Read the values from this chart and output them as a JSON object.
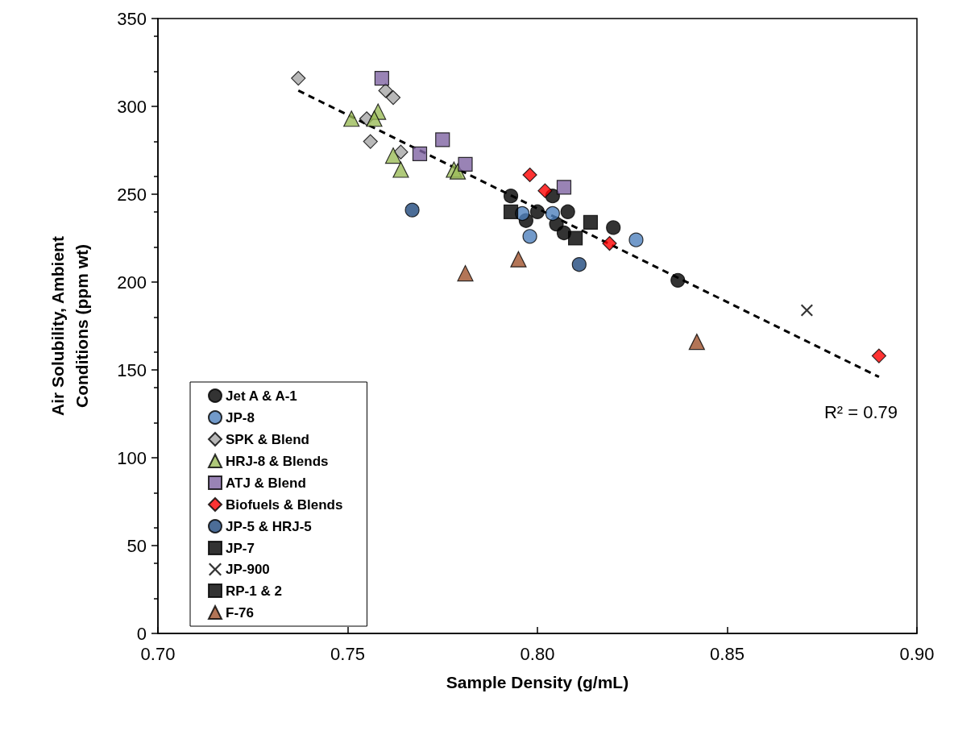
{
  "chart_data": {
    "type": "scatter",
    "xlabel": "Sample Density (g/mL)",
    "ylabel": "Air Solubility, Ambient Conditions (ppm wt)",
    "xlim": [
      0.7,
      0.9
    ],
    "xticks": [
      {
        "value": 0.7,
        "label": "0.70"
      },
      {
        "value": 0.75,
        "label": "0.75"
      },
      {
        "value": 0.8,
        "label": "0.80"
      },
      {
        "value": 0.85,
        "label": "0.85"
      },
      {
        "value": 0.9,
        "label": "0.90"
      }
    ],
    "ylim": [
      0,
      350
    ],
    "yticks": [
      0,
      50,
      100,
      150,
      200,
      250,
      300,
      350
    ],
    "grid": false,
    "legend": "bottom left",
    "annotations": [
      "R² = 0.79"
    ],
    "series": [
      {
        "name": "Jet A & A-1",
        "color": "#000000",
        "marker": "circle",
        "x": [
          0.793,
          0.797,
          0.8,
          0.804,
          0.805,
          0.808,
          0.807,
          0.82,
          0.837
        ],
        "values": [
          249,
          235,
          240,
          249,
          233,
          240,
          228,
          231,
          201
        ]
      },
      {
        "name": "JP-8",
        "color": "#4f81bd",
        "marker": "circle",
        "x": [
          0.796,
          0.798,
          0.804,
          0.826
        ],
        "values": [
          239,
          226,
          239,
          224
        ]
      },
      {
        "name": "SPK & Blend",
        "color": "#a6a6a6",
        "marker": "diamond",
        "x": [
          0.737,
          0.76,
          0.762,
          0.755,
          0.756,
          0.764
        ],
        "values": [
          316,
          309,
          305,
          293,
          280,
          274
        ]
      },
      {
        "name": "HRJ-8 & Blends",
        "color": "#9bbb59",
        "marker": "triangle",
        "x": [
          0.751,
          0.758,
          0.757,
          0.762,
          0.764,
          0.778,
          0.779
        ],
        "values": [
          293,
          297,
          293,
          272,
          264,
          264,
          263
        ]
      },
      {
        "name": "ATJ & Blend",
        "color": "#8064a2",
        "marker": "square",
        "x": [
          0.759,
          0.769,
          0.775,
          0.781,
          0.807
        ],
        "values": [
          316,
          273,
          281,
          267,
          254
        ]
      },
      {
        "name": "Biofuels & Blends",
        "color": "#ff0000",
        "marker": "diamond",
        "x": [
          0.798,
          0.802,
          0.819,
          0.89
        ],
        "values": [
          261,
          252,
          222,
          158
        ]
      },
      {
        "name": "JP-5 & HRJ-5",
        "color": "#1f497d",
        "marker": "circle",
        "x": [
          0.767,
          0.811
        ],
        "values": [
          241,
          210
        ]
      },
      {
        "name": "JP-7",
        "color": "#000000",
        "marker": "square",
        "x": [
          0.793
        ],
        "values": [
          240
        ]
      },
      {
        "name": "JP-900",
        "color": "#000000",
        "marker": "cross",
        "x": [
          0.871
        ],
        "values": [
          184
        ]
      },
      {
        "name": "RP-1 & 2",
        "color": "#000000",
        "marker": "square",
        "x": [
          0.814,
          0.81
        ],
        "values": [
          234,
          225
        ]
      },
      {
        "name": "F-76",
        "color": "#a0522d",
        "marker": "triangle",
        "x": [
          0.781,
          0.795,
          0.842
        ],
        "values": [
          205,
          213,
          166
        ]
      },
      {
        "type": "line",
        "color": "#000000",
        "marker": "none",
        "line_style": "dashed",
        "x": [
          0.737,
          0.89
        ],
        "values": [
          309,
          146
        ]
      }
    ]
  }
}
